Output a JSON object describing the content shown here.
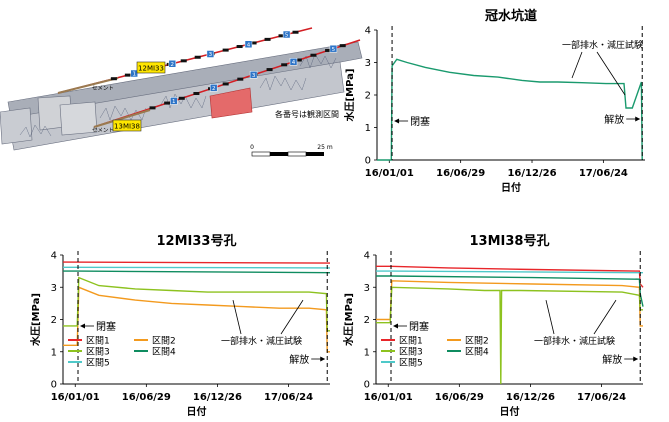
{
  "diagram": {
    "label_12": "12MI33",
    "label_13": "13MI38",
    "cement_1": "セメント",
    "cement_2": "セメント",
    "note": "各番号は観測区間",
    "scale_0": "0",
    "scale_25": "25 m",
    "upper_section_numbers": [
      "1",
      "2",
      "3",
      "4",
      "5"
    ],
    "lower_section_numbers": [
      "1",
      "2",
      "3",
      "4",
      "5"
    ]
  },
  "colors": {
    "flood": "#1a9a6e",
    "s1": "#e8262a",
    "s2": "#f39a1e",
    "s3": "#8dc21f",
    "s4": "#0f8c60",
    "s5": "#4ec9c9"
  },
  "chart_data": [
    {
      "id": "flood",
      "type": "line",
      "title": "冠水坑道",
      "xlabel": "日付",
      "ylabel": "水圧[MPa]",
      "ylim": [
        0,
        4
      ],
      "yticks": [
        "0",
        "1",
        "2",
        "3",
        "4"
      ],
      "xticks": [
        "16/01/01",
        "16/06/29",
        "16/12/26",
        "17/06/24"
      ],
      "x_tick_dates": [
        "2016-01-01",
        "2016-06-29",
        "2016-12-26",
        "2017-06-24"
      ],
      "xlim": [
        "2015-12-01",
        "2017-10-07"
      ],
      "grid": false,
      "annotations": {
        "close": "閉塞",
        "release": "解放",
        "test": "一部排水・減圧試験"
      },
      "vlines": [
        "2016-01-08",
        "2017-09-30"
      ],
      "series": [
        {
          "x": [
            "2015-12-01",
            "2016-01-06",
            "2016-01-08",
            "2016-01-20",
            "2016-02-15",
            "2016-04-01",
            "2016-06-01",
            "2016-08-01",
            "2016-10-01",
            "2016-12-01",
            "2017-01-15",
            "2017-03-01",
            "2017-05-01",
            "2017-07-01",
            "2017-08-15",
            "2017-08-20",
            "2017-09-05",
            "2017-09-28",
            "2017-09-30"
          ],
          "y": [
            0,
            0,
            2.9,
            3.1,
            3.0,
            2.85,
            2.7,
            2.6,
            2.55,
            2.45,
            2.4,
            2.4,
            2.38,
            2.35,
            2.35,
            1.6,
            1.6,
            2.4,
            0
          ]
        }
      ]
    },
    {
      "id": "mi33",
      "type": "line",
      "title": "12MI33号孔",
      "xlabel": "日付",
      "ylabel": "水圧[MPa]",
      "ylim": [
        0,
        4
      ],
      "yticks": [
        "0",
        "1",
        "2",
        "3",
        "4"
      ],
      "xticks": [
        "16/01/01",
        "16/06/29",
        "16/12/26",
        "17/06/24"
      ],
      "x_tick_dates": [
        "2016-01-01",
        "2016-06-29",
        "2016-12-26",
        "2017-06-24"
      ],
      "xlim": [
        "2015-12-01",
        "2017-10-07"
      ],
      "grid": false,
      "legend": [
        "区間1",
        "区間2",
        "区間3",
        "区間4",
        "区間5"
      ],
      "annotations": {
        "close": "閉塞",
        "release": "解放",
        "test": "一部排水・減圧試験"
      },
      "vlines": [
        "2016-01-08",
        "2017-09-30"
      ],
      "series": [
        {
          "name": "区間1",
          "x": [
            "2015-12-01",
            "2017-10-07"
          ],
          "y": [
            3.78,
            3.75
          ]
        },
        {
          "name": "区間2",
          "x": [
            "2015-12-01",
            "2016-01-06",
            "2016-01-10",
            "2016-03-01",
            "2016-06-01",
            "2016-09-01",
            "2016-12-01",
            "2017-03-01",
            "2017-06-01",
            "2017-08-15",
            "2017-09-28",
            "2017-09-30",
            "2017-10-07"
          ],
          "y": [
            1.2,
            1.2,
            3.0,
            2.75,
            2.6,
            2.5,
            2.45,
            2.4,
            2.35,
            2.35,
            2.3,
            1.0,
            1.0
          ]
        },
        {
          "name": "区間3",
          "x": [
            "2015-12-01",
            "2016-01-06",
            "2016-01-10",
            "2016-03-01",
            "2016-06-01",
            "2016-09-01",
            "2016-12-01",
            "2017-03-01",
            "2017-06-01",
            "2017-08-15",
            "2017-09-28",
            "2017-09-30",
            "2017-10-07"
          ],
          "y": [
            1.8,
            1.8,
            3.3,
            3.05,
            2.95,
            2.9,
            2.85,
            2.85,
            2.85,
            2.85,
            2.8,
            1.65,
            1.65
          ]
        },
        {
          "name": "区間4",
          "x": [
            "2015-12-01",
            "2016-01-08",
            "2017-10-07"
          ],
          "y": [
            3.5,
            3.5,
            3.45
          ]
        },
        {
          "name": "区間5",
          "x": [
            "2015-12-01",
            "2016-01-08",
            "2017-10-07"
          ],
          "y": [
            3.62,
            3.62,
            3.6
          ]
        }
      ]
    },
    {
      "id": "mi38",
      "type": "line",
      "title": "13MI38号孔",
      "xlabel": "日付",
      "ylabel": "水圧[MPa]",
      "ylim": [
        0,
        4
      ],
      "yticks": [
        "0",
        "1",
        "2",
        "3",
        "4"
      ],
      "xticks": [
        "16/01/01",
        "16/06/29",
        "16/12/26",
        "17/06/24"
      ],
      "x_tick_dates": [
        "2016-01-01",
        "2016-06-29",
        "2016-12-26",
        "2017-06-24"
      ],
      "xlim": [
        "2015-12-01",
        "2017-10-07"
      ],
      "grid": false,
      "legend": [
        "区間1",
        "区間2",
        "区間3",
        "区間4",
        "区間5"
      ],
      "annotations": {
        "close": "閉塞",
        "release": "解放",
        "test": "一部排水・減圧試験"
      },
      "vlines": [
        "2016-01-08",
        "2017-09-30"
      ],
      "series": [
        {
          "name": "区間1",
          "x": [
            "2015-12-01",
            "2016-01-08",
            "2016-06-01",
            "2017-01-01",
            "2017-09-28",
            "2017-09-30",
            "2017-10-07"
          ],
          "y": [
            3.65,
            3.65,
            3.6,
            3.55,
            3.5,
            3.1,
            3.0
          ]
        },
        {
          "name": "区間2",
          "x": [
            "2015-12-01",
            "2016-01-06",
            "2016-01-10",
            "2016-06-01",
            "2017-01-01",
            "2017-08-15",
            "2017-09-28",
            "2017-09-30",
            "2017-10-07"
          ],
          "y": [
            2.0,
            2.0,
            3.2,
            3.15,
            3.1,
            3.05,
            3.0,
            1.8,
            1.8
          ]
        },
        {
          "name": "区間3",
          "x": [
            "2015-12-01",
            "2016-01-06",
            "2016-01-10",
            "2016-06-01",
            "2016-09-01",
            "2016-10-10",
            "2016-10-12",
            "2016-10-14",
            "2016-12-01",
            "2017-08-15",
            "2017-09-28",
            "2017-09-30",
            "2017-10-07"
          ],
          "y": [
            1.9,
            1.9,
            3.0,
            2.95,
            2.9,
            2.9,
            0.0,
            2.9,
            2.9,
            2.85,
            2.75,
            2.3,
            2.3
          ]
        },
        {
          "name": "区間4",
          "x": [
            "2015-12-01",
            "2016-01-08",
            "2017-01-01",
            "2017-09-28",
            "2017-09-30",
            "2017-10-07"
          ],
          "y": [
            3.35,
            3.35,
            3.3,
            3.25,
            2.8,
            2.4
          ]
        },
        {
          "name": "区間5",
          "x": [
            "2015-12-01",
            "2016-01-08",
            "2017-10-07"
          ],
          "y": [
            3.5,
            3.5,
            3.45
          ]
        }
      ]
    }
  ]
}
